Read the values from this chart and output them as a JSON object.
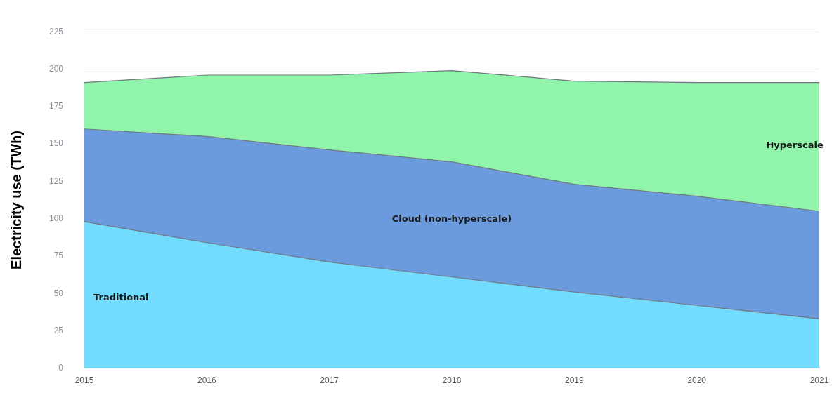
{
  "chart_data": {
    "type": "area",
    "stacked": true,
    "ylabel": "Electricity use (TWh)",
    "categories": [
      "2015",
      "2016",
      "2017",
      "2018",
      "2019",
      "2020",
      "2021"
    ],
    "ylim": [
      0,
      225
    ],
    "yticks": [
      0,
      25,
      50,
      75,
      100,
      125,
      150,
      175,
      200,
      225
    ],
    "grid": "y",
    "marker": "none",
    "legend": false,
    "series": [
      {
        "name": "Traditional",
        "color": "#72dcfe",
        "values": [
          98,
          84,
          71,
          61,
          51,
          42,
          33
        ]
      },
      {
        "name": "Cloud (non-hyperscale)",
        "color": "#6b9bdd",
        "values": [
          62,
          71,
          75,
          77,
          72,
          73,
          72
        ]
      },
      {
        "name": "Hyperscale",
        "color": "#90f5aa",
        "values": [
          31,
          41,
          50,
          61,
          69,
          76,
          86
        ]
      }
    ]
  }
}
